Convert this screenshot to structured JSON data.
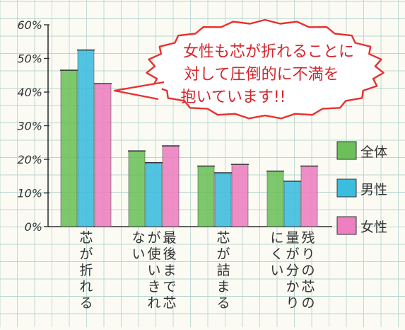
{
  "chart_data": {
    "type": "bar",
    "categories": [
      "芯が折れる",
      "最後まで芯が使いきれない",
      "芯が詰まる",
      "残りの芯の量が分かりにくい"
    ],
    "series": [
      {
        "name": "全体",
        "color": "#6cc05a",
        "values": [
          46.5,
          22.5,
          18,
          16.5
        ]
      },
      {
        "name": "男性",
        "color": "#3bbde0",
        "values": [
          52.5,
          19,
          16,
          13.5
        ]
      },
      {
        "name": "女性",
        "color": "#ee7fc0",
        "values": [
          42.5,
          24,
          18.5,
          18
        ]
      }
    ],
    "y_ticks": [
      "0%",
      "10%",
      "20%",
      "30%",
      "40%",
      "50%",
      "60%"
    ],
    "ylim": [
      0,
      60
    ],
    "legend_position": "right",
    "grid": true
  },
  "callout": {
    "lines": [
      "女性も芯が折れることに",
      "対して圧倒的に不満を",
      "抱いています!!"
    ],
    "border_color": "#e8312f"
  }
}
